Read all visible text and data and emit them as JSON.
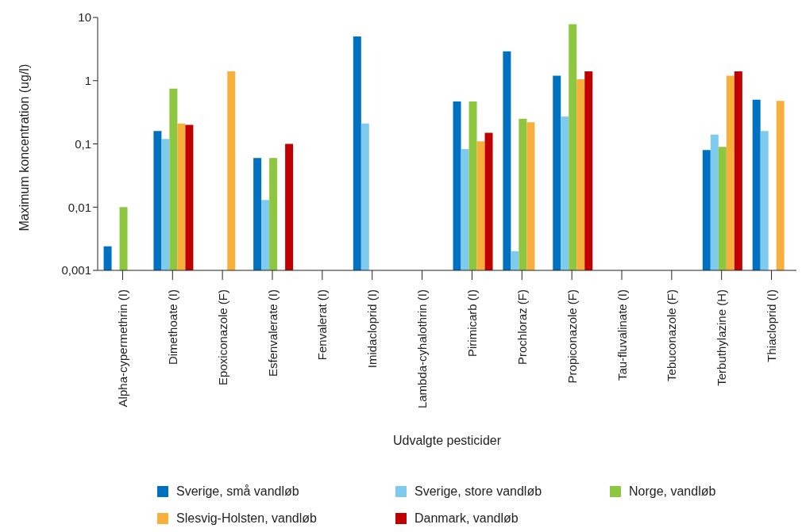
{
  "chart_data": {
    "type": "bar",
    "xlabel": "Udvalgte pesticider",
    "ylabel": "Maximum koncentration (ug/l)",
    "categories": [
      "Alpha-cypermethrin (I)",
      "Dimethoate (I)",
      "Epoxiconazole (F)",
      "Esfenvalerate (I)",
      "Fenvalerat (I)",
      "Imidacloprid (I)",
      "Lambda-cyhalothrin (I)",
      "Pirimicarb (I)",
      "Prochloraz (F)",
      "Propiconazole (F)",
      "Tau-fluvalinate (I)",
      "Tebuconazole (F)",
      "Terbuthylazine (H)",
      "Thiacloprid (I)"
    ],
    "series": [
      {
        "name": "Sverige, små vandløb",
        "color": "#0070c0",
        "values": [
          0.0024,
          0.16,
          null,
          0.06,
          null,
          5,
          null,
          0.47,
          2.9,
          1.2,
          null,
          null,
          0.08,
          0.5
        ]
      },
      {
        "name": "Sverige, store vandløb",
        "color": "#7fcaef",
        "values": [
          null,
          0.12,
          null,
          0.013,
          null,
          0.21,
          null,
          0.083,
          0.002,
          0.27,
          null,
          null,
          0.14,
          0.16
        ]
      },
      {
        "name": "Norge, vandløb",
        "color": "#8dc63f",
        "values": [
          0.01,
          0.75,
          null,
          0.06,
          null,
          null,
          null,
          0.47,
          0.25,
          7.8,
          null,
          null,
          0.09,
          null
        ]
      },
      {
        "name": "Slesvig-Holsten, vandløb",
        "color": "#f8b03c",
        "values": [
          null,
          0.21,
          1.4,
          null,
          null,
          null,
          null,
          0.11,
          0.22,
          1.05,
          null,
          null,
          1.2,
          0.48
        ]
      },
      {
        "name": "Danmark, vandløb",
        "color": "#c00000",
        "values": [
          null,
          0.2,
          null,
          0.1,
          null,
          null,
          null,
          0.15,
          null,
          1.4,
          null,
          null,
          1.4,
          null
        ]
      }
    ],
    "log": "y",
    "ylim": [
      0.001,
      10
    ],
    "yticks": [
      {
        "value": 0.001,
        "label": "0,001"
      },
      {
        "value": 0.01,
        "label": "0,01"
      },
      {
        "value": 0.1,
        "label": "0,1"
      },
      1,
      10
    ],
    "grid": false,
    "legend": "bottom"
  }
}
